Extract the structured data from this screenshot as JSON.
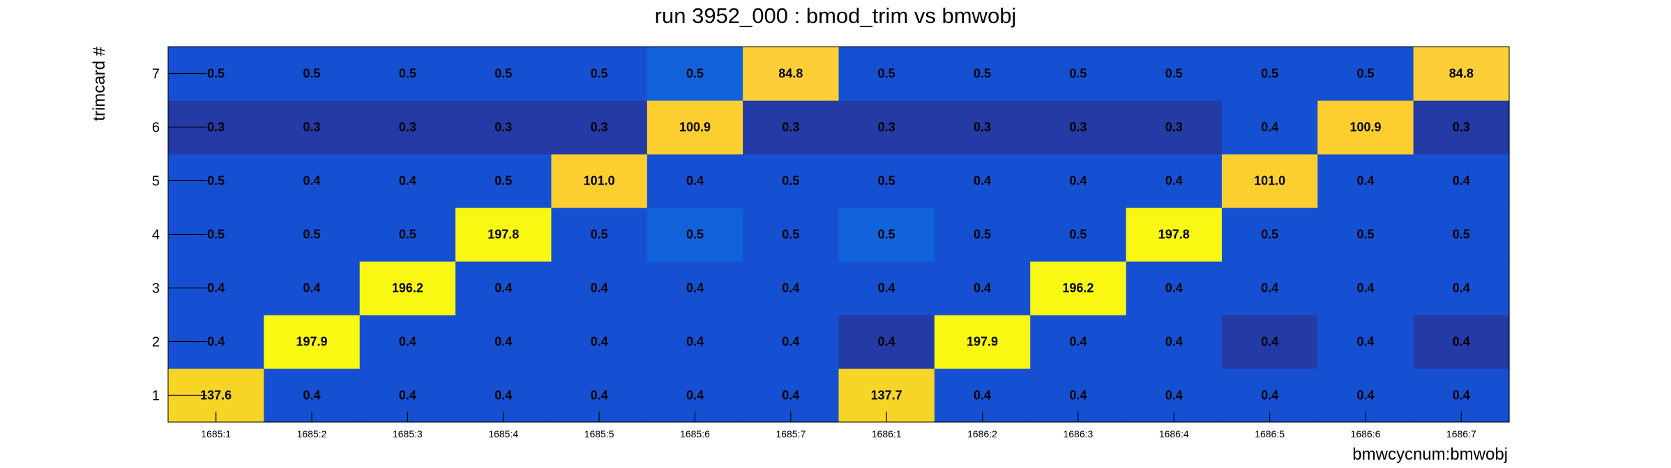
{
  "chart_data": {
    "type": "heatmap",
    "title": "run 3952_000 : bmod_trim vs bmwobj",
    "xlabel": "bmwcycnum:bmwobj",
    "ylabel": "trimcard #",
    "x_categories": [
      "1685:1",
      "1685:2",
      "1685:3",
      "1685:4",
      "1685:5",
      "1685:6",
      "1685:7",
      "1686:1",
      "1686:2",
      "1686:3",
      "1686:4",
      "1686:5",
      "1686:6",
      "1686:7"
    ],
    "y_categories": [
      "1",
      "2",
      "3",
      "4",
      "5",
      "6",
      "7"
    ],
    "values": [
      [
        137.6,
        0.4,
        0.4,
        0.4,
        0.4,
        0.4,
        0.4,
        137.7,
        0.4,
        0.4,
        0.4,
        0.4,
        0.4,
        0.4
      ],
      [
        0.4,
        197.9,
        0.4,
        0.4,
        0.4,
        0.4,
        0.4,
        0.4,
        197.9,
        0.4,
        0.4,
        0.4,
        0.4,
        0.4
      ],
      [
        0.4,
        0.4,
        196.2,
        0.4,
        0.4,
        0.4,
        0.4,
        0.4,
        0.4,
        196.2,
        0.4,
        0.4,
        0.4,
        0.4
      ],
      [
        0.5,
        0.5,
        0.5,
        197.8,
        0.5,
        0.5,
        0.5,
        0.5,
        0.5,
        0.5,
        197.8,
        0.5,
        0.5,
        0.5
      ],
      [
        0.5,
        0.4,
        0.4,
        0.5,
        101.0,
        0.4,
        0.5,
        0.5,
        0.4,
        0.4,
        0.4,
        101.0,
        0.4,
        0.4
      ],
      [
        0.3,
        0.3,
        0.3,
        0.3,
        0.3,
        100.9,
        0.3,
        0.3,
        0.3,
        0.3,
        0.3,
        0.4,
        100.9,
        0.3
      ],
      [
        0.5,
        0.5,
        0.5,
        0.5,
        0.5,
        0.5,
        84.8,
        0.5,
        0.5,
        0.5,
        0.5,
        0.5,
        0.5,
        84.8
      ]
    ],
    "labels": [
      [
        "137.6",
        "0.4",
        "0.4",
        "0.4",
        "0.4",
        "0.4",
        "0.4",
        "137.7",
        "0.4",
        "0.4",
        "0.4",
        "0.4",
        "0.4",
        "0.4"
      ],
      [
        "0.4",
        "197.9",
        "0.4",
        "0.4",
        "0.4",
        "0.4",
        "0.4",
        "0.4",
        "197.9",
        "0.4",
        "0.4",
        "0.4",
        "0.4",
        "0.4"
      ],
      [
        "0.4",
        "0.4",
        "196.2",
        "0.4",
        "0.4",
        "0.4",
        "0.4",
        "0.4",
        "0.4",
        "196.2",
        "0.4",
        "0.4",
        "0.4",
        "0.4"
      ],
      [
        "0.5",
        "0.5",
        "0.5",
        "197.8",
        "0.5",
        "0.5",
        "0.5",
        "0.5",
        "0.5",
        "0.5",
        "197.8",
        "0.5",
        "0.5",
        "0.5"
      ],
      [
        "0.5",
        "0.4",
        "0.4",
        "0.5",
        "101.0",
        "0.4",
        "0.5",
        "0.5",
        "0.4",
        "0.4",
        "0.4",
        "101.0",
        "0.4",
        "0.4"
      ],
      [
        "0.3",
        "0.3",
        "0.3",
        "0.3",
        "0.3",
        "100.9",
        "0.3",
        "0.3",
        "0.3",
        "0.3",
        "0.3",
        "0.4",
        "100.9",
        "0.3"
      ],
      [
        "0.5",
        "0.5",
        "0.5",
        "0.5",
        "0.5",
        "0.5",
        "84.8",
        "0.5",
        "0.5",
        "0.5",
        "0.5",
        "0.5",
        "0.5",
        "84.8"
      ]
    ],
    "cell_colors": [
      [
        "#f6d526",
        "#1650d2",
        "#1650d2",
        "#1650d2",
        "#1650d2",
        "#1650d2",
        "#1650d2",
        "#f6d526",
        "#1650d2",
        "#1650d2",
        "#1650d2",
        "#1650d2",
        "#1650d2",
        "#1650d2"
      ],
      [
        "#1650d2",
        "#f9f813",
        "#1650d2",
        "#1650d2",
        "#1650d2",
        "#1650d2",
        "#1650d2",
        "#243aa5",
        "#f9f813",
        "#1650d2",
        "#1650d2",
        "#243aa5",
        "#1650d2",
        "#243aa5"
      ],
      [
        "#1650d2",
        "#1650d2",
        "#f9f813",
        "#1650d2",
        "#1650d2",
        "#1650d2",
        "#1650d2",
        "#1650d2",
        "#1650d2",
        "#f9f813",
        "#1650d2",
        "#1650d2",
        "#1650d2",
        "#1650d2"
      ],
      [
        "#1650d2",
        "#1650d2",
        "#1650d2",
        "#f9f813",
        "#1650d2",
        "#1262d9",
        "#1650d2",
        "#1262d9",
        "#1650d2",
        "#1650d2",
        "#f9f813",
        "#1650d2",
        "#1650d2",
        "#1650d2"
      ],
      [
        "#1650d2",
        "#1650d2",
        "#1650d2",
        "#1650d2",
        "#fbcf2f",
        "#1650d2",
        "#1650d2",
        "#1650d2",
        "#1650d2",
        "#1650d2",
        "#1650d2",
        "#fbcf2f",
        "#1650d2",
        "#1650d2"
      ],
      [
        "#243aa5",
        "#243aa5",
        "#243aa5",
        "#243aa5",
        "#243aa5",
        "#fcce30",
        "#243aa5",
        "#243aa5",
        "#243aa5",
        "#243aa5",
        "#243aa5",
        "#1650d2",
        "#fcce30",
        "#243aa5"
      ],
      [
        "#1650d2",
        "#1650d2",
        "#1650d2",
        "#1650d2",
        "#1650d2",
        "#1262d9",
        "#fdcf37",
        "#1650d2",
        "#1650d2",
        "#1650d2",
        "#1650d2",
        "#1650d2",
        "#1650d2",
        "#fdcf37"
      ]
    ],
    "grid": false,
    "legend": "none"
  }
}
